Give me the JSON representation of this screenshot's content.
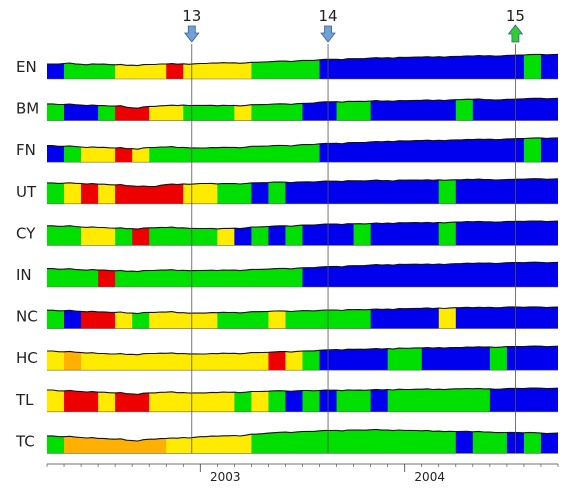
{
  "chart_data": {
    "type": "area",
    "title": "",
    "xlabel": "",
    "ylabel": "",
    "x_range": [
      "2002-04",
      "2004-09"
    ],
    "x_ticks": [
      {
        "label": "2003",
        "date": "2003-01"
      },
      {
        "label": "2004",
        "date": "2004-01"
      }
    ],
    "grid": false,
    "legend": "none",
    "state_colors": {
      "1": "#ffeb00",
      "2": "#00e000",
      "3": "#0000ee",
      "4": "#ee0000",
      "5": "#ffb000"
    },
    "markers": [
      {
        "label": "13",
        "date": "2002-12",
        "arrow": "down",
        "color": "#6fa0d8"
      },
      {
        "label": "14",
        "date": "2003-08",
        "arrow": "down",
        "color": "#6fa0d8"
      },
      {
        "label": "15",
        "date": "2004-07",
        "arrow": "up",
        "color": "#33cc33"
      }
    ],
    "series": [
      {
        "name": "EN",
        "level": [
          0.35,
          0.38,
          0.33,
          0.34,
          0.3,
          0.28,
          0.32,
          0.35,
          0.36,
          0.38,
          0.4,
          0.42,
          0.45,
          0.48,
          0.52,
          0.56,
          0.6,
          0.63,
          0.66,
          0.7,
          0.72,
          0.74,
          0.76,
          0.78,
          0.8,
          0.82,
          0.84,
          0.86,
          0.88,
          0.92
        ],
        "states": [
          3,
          2,
          2,
          2,
          1,
          1,
          1,
          4,
          1,
          1,
          1,
          1,
          2,
          2,
          2,
          2,
          3,
          3,
          3,
          3,
          3,
          3,
          3,
          3,
          3,
          3,
          3,
          3,
          2,
          3
        ]
      },
      {
        "name": "BM",
        "level": [
          0.45,
          0.42,
          0.38,
          0.35,
          0.32,
          0.22,
          0.3,
          0.35,
          0.38,
          0.36,
          0.34,
          0.36,
          0.4,
          0.42,
          0.45,
          0.48,
          0.55,
          0.58,
          0.6,
          0.62,
          0.63,
          0.64,
          0.66,
          0.68,
          0.7,
          0.72,
          0.7,
          0.72,
          0.75,
          0.78
        ],
        "states": [
          2,
          3,
          3,
          2,
          4,
          4,
          1,
          1,
          2,
          2,
          2,
          1,
          2,
          2,
          2,
          3,
          3,
          2,
          2,
          3,
          3,
          3,
          3,
          3,
          2,
          3,
          3,
          3,
          3,
          3
        ]
      },
      {
        "name": "FN",
        "level": [
          0.45,
          0.4,
          0.36,
          0.34,
          0.3,
          0.26,
          0.33,
          0.36,
          0.34,
          0.3,
          0.32,
          0.34,
          0.4,
          0.42,
          0.45,
          0.5,
          0.55,
          0.58,
          0.62,
          0.66,
          0.7,
          0.72,
          0.74,
          0.76,
          0.78,
          0.8,
          0.82,
          0.84,
          0.86,
          0.9
        ],
        "states": [
          3,
          2,
          1,
          1,
          4,
          1,
          2,
          2,
          2,
          2,
          2,
          2,
          2,
          2,
          2,
          2,
          3,
          3,
          3,
          3,
          3,
          3,
          3,
          3,
          3,
          3,
          3,
          3,
          2,
          3
        ]
      },
      {
        "name": "UT",
        "level": [
          0.7,
          0.68,
          0.66,
          0.62,
          0.58,
          0.52,
          0.48,
          0.6,
          0.64,
          0.66,
          0.64,
          0.66,
          0.7,
          0.72,
          0.74,
          0.76,
          0.78,
          0.8,
          0.82,
          0.84,
          0.84,
          0.86,
          0.86,
          0.88,
          0.88,
          0.9,
          0.9,
          0.9,
          0.92,
          0.94
        ],
        "states": [
          2,
          1,
          4,
          1,
          4,
          4,
          4,
          4,
          1,
          1,
          2,
          2,
          3,
          2,
          3,
          3,
          3,
          3,
          3,
          3,
          3,
          3,
          3,
          2,
          3,
          3,
          3,
          3,
          3,
          3
        ]
      },
      {
        "name": "CY",
        "level": [
          0.62,
          0.6,
          0.55,
          0.52,
          0.48,
          0.45,
          0.5,
          0.52,
          0.5,
          0.46,
          0.44,
          0.48,
          0.55,
          0.58,
          0.62,
          0.66,
          0.7,
          0.72,
          0.74,
          0.76,
          0.78,
          0.8,
          0.8,
          0.82,
          0.84,
          0.86,
          0.86,
          0.88,
          0.88,
          0.9
        ],
        "states": [
          2,
          2,
          1,
          1,
          2,
          4,
          2,
          2,
          2,
          2,
          1,
          3,
          2,
          3,
          2,
          3,
          3,
          3,
          2,
          3,
          3,
          3,
          3,
          2,
          3,
          3,
          3,
          3,
          3,
          3
        ]
      },
      {
        "name": "IN",
        "level": [
          0.55,
          0.52,
          0.48,
          0.46,
          0.42,
          0.4,
          0.44,
          0.46,
          0.45,
          0.44,
          0.44,
          0.46,
          0.5,
          0.52,
          0.56,
          0.6,
          0.64,
          0.68,
          0.72,
          0.76,
          0.78,
          0.8,
          0.8,
          0.82,
          0.84,
          0.86,
          0.88,
          0.9,
          0.9,
          0.92
        ],
        "states": [
          2,
          2,
          2,
          4,
          2,
          2,
          2,
          2,
          2,
          2,
          2,
          2,
          2,
          2,
          2,
          3,
          3,
          3,
          3,
          3,
          3,
          3,
          3,
          3,
          3,
          3,
          3,
          3,
          3,
          3
        ]
      },
      {
        "name": "NC",
        "level": [
          0.55,
          0.52,
          0.48,
          0.45,
          0.42,
          0.38,
          0.42,
          0.44,
          0.4,
          0.38,
          0.4,
          0.42,
          0.46,
          0.48,
          0.5,
          0.52,
          0.54,
          0.56,
          0.58,
          0.6,
          0.62,
          0.64,
          0.66,
          0.68,
          0.7,
          0.7,
          0.72,
          0.74,
          0.72,
          0.74
        ],
        "states": [
          2,
          3,
          4,
          4,
          1,
          2,
          1,
          1,
          1,
          1,
          2,
          2,
          2,
          1,
          2,
          2,
          2,
          2,
          2,
          3,
          3,
          3,
          3,
          1,
          3,
          3,
          3,
          3,
          3,
          3
        ]
      },
      {
        "name": "HC",
        "level": [
          0.6,
          0.55,
          0.5,
          0.45,
          0.42,
          0.4,
          0.45,
          0.46,
          0.45,
          0.42,
          0.44,
          0.46,
          0.5,
          0.52,
          0.56,
          0.6,
          0.64,
          0.68,
          0.7,
          0.72,
          0.74,
          0.76,
          0.78,
          0.8,
          0.8,
          0.82,
          0.84,
          0.86,
          0.86,
          0.88
        ],
        "states": [
          1,
          5,
          1,
          1,
          1,
          1,
          1,
          1,
          1,
          1,
          1,
          1,
          1,
          4,
          1,
          2,
          3,
          3,
          3,
          3,
          2,
          2,
          3,
          3,
          3,
          3,
          2,
          3,
          3,
          3
        ],
        "axis": "bottom"
      },
      {
        "name": "TL",
        "level": [
          0.75,
          0.7,
          0.66,
          0.62,
          0.58,
          0.52,
          0.58,
          0.62,
          0.6,
          0.58,
          0.6,
          0.62,
          0.66,
          0.68,
          0.7,
          0.72,
          0.72,
          0.74,
          0.74,
          0.76,
          0.78,
          0.78,
          0.8,
          0.8,
          0.82,
          0.82,
          0.82,
          0.84,
          0.84,
          0.86
        ],
        "states": [
          1,
          4,
          4,
          1,
          4,
          4,
          1,
          1,
          1,
          1,
          1,
          2,
          1,
          2,
          3,
          2,
          3,
          2,
          2,
          3,
          2,
          2,
          2,
          2,
          2,
          2,
          3,
          3,
          3,
          3
        ]
      },
      {
        "name": "TC",
        "level": [
          0.5,
          0.45,
          0.4,
          0.35,
          0.3,
          0.22,
          0.3,
          0.35,
          0.4,
          0.45,
          0.48,
          0.52,
          0.6,
          0.66,
          0.72,
          0.76,
          0.8,
          0.82,
          0.84,
          0.86,
          0.84,
          0.82,
          0.8,
          0.78,
          0.76,
          0.74,
          0.72,
          0.7,
          0.68,
          0.66
        ],
        "states": [
          2,
          5,
          5,
          5,
          5,
          5,
          5,
          1,
          1,
          1,
          1,
          1,
          2,
          2,
          2,
          2,
          2,
          2,
          2,
          2,
          2,
          2,
          2,
          2,
          3,
          2,
          2,
          3,
          2,
          3
        ]
      }
    ]
  }
}
